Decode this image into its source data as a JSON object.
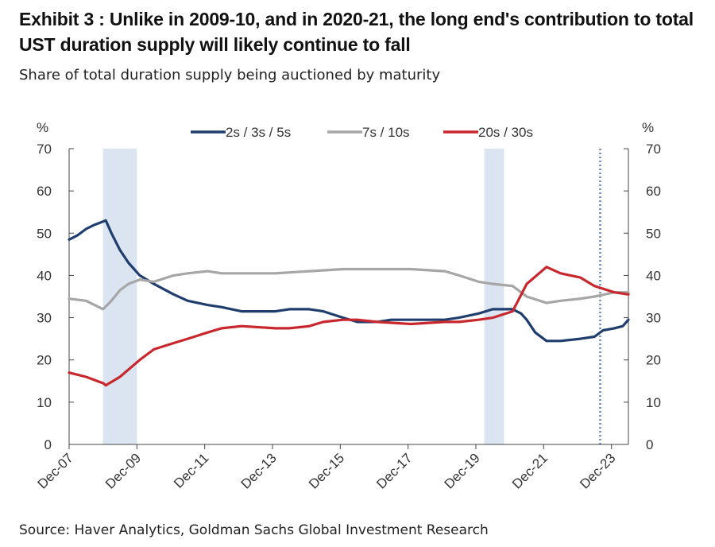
{
  "header": {
    "title": "Exhibit 3 : Unlike in 2009-10, and in 2020-21, the long end's contribution to total UST duration supply will likely continue to fall",
    "subtitle": "Share of total duration supply being auctioned by maturity"
  },
  "footer": {
    "source": "Source: Haver Analytics, Goldman Sachs Global Investment Research"
  },
  "chart_data": {
    "type": "line",
    "title": "Exhibit 3 : Unlike in 2009-10, and in 2020-21, the long end's contribution to total UST duration supply will likely continue to fall",
    "subtitle": "Share of total duration supply being auctioned by maturity",
    "ylabel_left": "%",
    "ylabel_right": "%",
    "ylim": [
      0,
      70
    ],
    "yticks": [
      0,
      10,
      20,
      30,
      40,
      50,
      60,
      70
    ],
    "xlim": [
      "2007-12",
      "2024-06"
    ],
    "xticks": [
      "Dec-07",
      "Dec-09",
      "Dec-11",
      "Dec-13",
      "Dec-15",
      "Dec-17",
      "Dec-19",
      "Dec-21",
      "Dec-23"
    ],
    "grid": false,
    "legend": "top-center",
    "recession_shading": [
      [
        "2008-12",
        "2009-12"
      ],
      [
        "2020-03",
        "2020-10"
      ]
    ],
    "vertical_marker": "2023-08",
    "series": [
      {
        "name": "2s / 3s / 5s",
        "color": "#1f3e6e",
        "points": [
          [
            "2007-12",
            48.5
          ],
          [
            "2008-03",
            49.5
          ],
          [
            "2008-06",
            51
          ],
          [
            "2008-09",
            52
          ],
          [
            "2009-01",
            53
          ],
          [
            "2009-03",
            50
          ],
          [
            "2009-06",
            46
          ],
          [
            "2009-09",
            43
          ],
          [
            "2010-01",
            40
          ],
          [
            "2010-06",
            38
          ],
          [
            "2011-01",
            35.5
          ],
          [
            "2011-06",
            34
          ],
          [
            "2012-01",
            33
          ],
          [
            "2012-06",
            32.5
          ],
          [
            "2013-01",
            31.5
          ],
          [
            "2013-06",
            31.5
          ],
          [
            "2014-01",
            31.5
          ],
          [
            "2014-06",
            32
          ],
          [
            "2015-01",
            32
          ],
          [
            "2015-06",
            31.5
          ],
          [
            "2016-01",
            30
          ],
          [
            "2016-06",
            29
          ],
          [
            "2017-01",
            29
          ],
          [
            "2017-06",
            29.5
          ],
          [
            "2018-01",
            29.5
          ],
          [
            "2018-06",
            29.5
          ],
          [
            "2019-01",
            29.5
          ],
          [
            "2019-06",
            30
          ],
          [
            "2020-01",
            31
          ],
          [
            "2020-06",
            32
          ],
          [
            "2021-01",
            32
          ],
          [
            "2021-04",
            31
          ],
          [
            "2021-06",
            29.5
          ],
          [
            "2021-09",
            26.5
          ],
          [
            "2022-01",
            24.5
          ],
          [
            "2022-06",
            24.5
          ],
          [
            "2023-01",
            25
          ],
          [
            "2023-06",
            25.5
          ],
          [
            "2023-09",
            27
          ],
          [
            "2024-01",
            27.5
          ],
          [
            "2024-04",
            28
          ],
          [
            "2024-06",
            29.5
          ]
        ]
      },
      {
        "name": "7s / 10s",
        "color": "#a6a6a6",
        "points": [
          [
            "2007-12",
            34.5
          ],
          [
            "2008-06",
            34
          ],
          [
            "2008-12",
            32
          ],
          [
            "2009-03",
            34
          ],
          [
            "2009-06",
            36.5
          ],
          [
            "2009-09",
            38
          ],
          [
            "2010-01",
            39
          ],
          [
            "2010-06",
            38.5
          ],
          [
            "2011-01",
            40
          ],
          [
            "2011-06",
            40.5
          ],
          [
            "2012-01",
            41
          ],
          [
            "2012-06",
            40.5
          ],
          [
            "2013-01",
            40.5
          ],
          [
            "2014-01",
            40.5
          ],
          [
            "2015-01",
            41
          ],
          [
            "2016-01",
            41.5
          ],
          [
            "2016-06",
            41.5
          ],
          [
            "2017-01",
            41.5
          ],
          [
            "2018-01",
            41.5
          ],
          [
            "2019-01",
            41
          ],
          [
            "2019-06",
            40
          ],
          [
            "2020-01",
            38.5
          ],
          [
            "2020-06",
            38
          ],
          [
            "2021-01",
            37.5
          ],
          [
            "2021-06",
            35
          ],
          [
            "2022-01",
            33.5
          ],
          [
            "2022-06",
            34
          ],
          [
            "2023-01",
            34.5
          ],
          [
            "2023-06",
            35
          ],
          [
            "2024-01",
            36
          ],
          [
            "2024-06",
            36
          ]
        ]
      },
      {
        "name": "20s / 30s",
        "color": "#c8282d",
        "points": [
          [
            "2007-12",
            17
          ],
          [
            "2008-06",
            16
          ],
          [
            "2008-12",
            14.5
          ],
          [
            "2009-01",
            14
          ],
          [
            "2009-06",
            16
          ],
          [
            "2010-01",
            20
          ],
          [
            "2010-06",
            22.5
          ],
          [
            "2011-01",
            24
          ],
          [
            "2011-06",
            25
          ],
          [
            "2012-01",
            26.5
          ],
          [
            "2012-06",
            27.5
          ],
          [
            "2013-01",
            28
          ],
          [
            "2014-01",
            27.5
          ],
          [
            "2014-06",
            27.5
          ],
          [
            "2015-01",
            28
          ],
          [
            "2015-06",
            29
          ],
          [
            "2016-01",
            29.5
          ],
          [
            "2016-06",
            29.5
          ],
          [
            "2017-01",
            29
          ],
          [
            "2018-01",
            28.5
          ],
          [
            "2019-01",
            29
          ],
          [
            "2019-06",
            29
          ],
          [
            "2020-01",
            29.5
          ],
          [
            "2020-06",
            30
          ],
          [
            "2021-01",
            31.5
          ],
          [
            "2021-06",
            38
          ],
          [
            "2022-01",
            42
          ],
          [
            "2022-06",
            40.5
          ],
          [
            "2023-01",
            39.5
          ],
          [
            "2023-06",
            37.5
          ],
          [
            "2024-01",
            36
          ],
          [
            "2024-06",
            35.5
          ]
        ]
      }
    ]
  }
}
